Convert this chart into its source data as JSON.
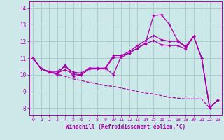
{
  "xlabel": "Windchill (Refroidissement éolien,°C)",
  "background_color": "#cce8e8",
  "grid_color": "#aacccc",
  "line_color": "#aa00aa",
  "hours": [
    0,
    1,
    2,
    3,
    4,
    5,
    6,
    7,
    8,
    9,
    10,
    11,
    12,
    13,
    14,
    15,
    16,
    17,
    18,
    19,
    20,
    21,
    22,
    23
  ],
  "line1": [
    11.0,
    10.35,
    10.2,
    10.0,
    10.6,
    9.9,
    10.0,
    10.35,
    10.35,
    10.4,
    10.0,
    11.15,
    11.3,
    11.6,
    11.9,
    13.55,
    13.6,
    13.0,
    12.05,
    11.7,
    12.3,
    11.0,
    8.0,
    8.5
  ],
  "line2": [
    11.0,
    10.35,
    10.2,
    10.2,
    10.5,
    10.15,
    10.1,
    10.4,
    10.4,
    10.4,
    11.15,
    11.15,
    11.4,
    11.75,
    12.05,
    12.35,
    12.1,
    12.0,
    12.0,
    11.65,
    12.3,
    11.0,
    8.0,
    8.5
  ],
  "line3": [
    11.0,
    10.35,
    10.15,
    10.1,
    10.3,
    10.05,
    10.0,
    10.35,
    10.35,
    10.35,
    11.05,
    11.05,
    11.3,
    11.6,
    11.85,
    12.05,
    11.8,
    11.75,
    11.75,
    11.55,
    12.3,
    11.0,
    8.0,
    8.5
  ],
  "line4": [
    11.0,
    10.35,
    10.15,
    10.05,
    9.9,
    9.75,
    9.65,
    9.55,
    9.45,
    9.35,
    9.3,
    9.2,
    9.1,
    9.0,
    8.9,
    8.85,
    8.75,
    8.65,
    8.6,
    8.55,
    8.55,
    8.55,
    8.0,
    8.5
  ],
  "ylim": [
    7.6,
    14.4
  ],
  "yticks": [
    8,
    9,
    10,
    11,
    12,
    13,
    14
  ],
  "xlim": [
    -0.5,
    23.5
  ],
  "xticks": [
    0,
    1,
    2,
    3,
    4,
    5,
    6,
    7,
    8,
    9,
    10,
    11,
    12,
    13,
    14,
    15,
    16,
    17,
    18,
    19,
    20,
    21,
    22,
    23
  ]
}
